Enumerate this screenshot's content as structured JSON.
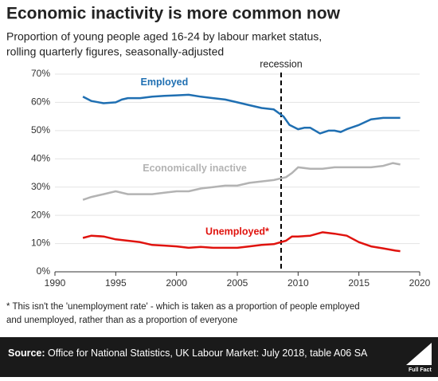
{
  "chart_data": {
    "type": "line",
    "title": "Economic inactivity is more common now",
    "subtitle": [
      "Proportion of young people aged 16-24 by labour market status,",
      "rolling quarterly figures, seasonally-adjusted"
    ],
    "xlim": [
      1990,
      2020
    ],
    "xticks": [
      1990,
      1995,
      2000,
      2005,
      2010,
      2015,
      2020
    ],
    "ylim": [
      0,
      70
    ],
    "yticks": [
      {
        "value": 0,
        "label": "0%"
      },
      {
        "value": 10,
        "label": "10%"
      },
      {
        "value": 20,
        "label": "20%"
      },
      {
        "value": 30,
        "label": "30%"
      },
      {
        "value": 40,
        "label": "40%"
      },
      {
        "value": 50,
        "label": "50%"
      },
      {
        "value": 60,
        "label": "60%"
      },
      {
        "value": 70,
        "label": "70%"
      }
    ],
    "grid": true,
    "recession": {
      "x": 2008.6,
      "label": "recession"
    },
    "series": [
      {
        "name": "Employed",
        "color": "#1f6fb2",
        "x": [
          1992.3,
          1993,
          1994,
          1995,
          1995.5,
          1996,
          1997,
          1998,
          1999,
          2000,
          2001,
          2002,
          2003,
          2004,
          2005,
          2006,
          2007,
          2008,
          2008.8,
          2009.3,
          2010,
          2010.5,
          2011,
          2011.8,
          2012.5,
          2013,
          2013.5,
          2014,
          2015,
          2016,
          2017,
          2018,
          2018.4
        ],
        "values": [
          62,
          60.5,
          59.7,
          60,
          61,
          61.5,
          61.5,
          62,
          62.3,
          62.5,
          62.7,
          62,
          61.5,
          61,
          60,
          59,
          58,
          57.5,
          55,
          52,
          50.5,
          51,
          51,
          49,
          50,
          50,
          49.5,
          50.5,
          52,
          54,
          54.5,
          54.5,
          54.5
        ]
      },
      {
        "name": "Economically inactive",
        "color": "#b3b3b3",
        "x": [
          1992.3,
          1993,
          1994,
          1995,
          1996,
          1997,
          1998,
          1999,
          2000,
          2001,
          2002,
          2003,
          2004,
          2005,
          2006,
          2007,
          2008,
          2009,
          2009.5,
          2010,
          2011,
          2012,
          2013,
          2014,
          2015,
          2016,
          2017,
          2017.8,
          2018.4
        ],
        "values": [
          25.5,
          26.5,
          27.5,
          28.5,
          27.5,
          27.5,
          27.5,
          28,
          28.5,
          28.5,
          29.5,
          30,
          30.5,
          30.5,
          31.5,
          32,
          32.5,
          33.5,
          35,
          37,
          36.5,
          36.5,
          37,
          37,
          37,
          37,
          37.5,
          38.5,
          38
        ]
      },
      {
        "name": "Unemployed*",
        "color": "#e0130e",
        "x": [
          1992.3,
          1993,
          1994,
          1995,
          1996,
          1997,
          1998,
          1999,
          2000,
          2001,
          2002,
          2003,
          2004,
          2005,
          2006,
          2007,
          2008,
          2009,
          2009.5,
          2010,
          2011,
          2012,
          2013,
          2014,
          2015,
          2016,
          2017,
          2018,
          2018.4
        ],
        "values": [
          12,
          12.8,
          12.5,
          11.5,
          11,
          10.5,
          9.5,
          9.3,
          9,
          8.5,
          8.8,
          8.5,
          8.5,
          8.5,
          9,
          9.5,
          9.8,
          11,
          12.5,
          12.5,
          12.8,
          14,
          13.5,
          12.8,
          10.5,
          9,
          8.3,
          7.5,
          7.3
        ]
      }
    ],
    "footnote": [
      "* This isn't the 'unemployment rate' - which is taken as a proportion of people employed",
      "and unemployed, rather than as a proportion of everyone"
    ],
    "source_label": "Source:",
    "source_text": "Office for National Statistics, UK Labour Market: July 2018, table A06 SA",
    "logo": "Full Fact"
  }
}
